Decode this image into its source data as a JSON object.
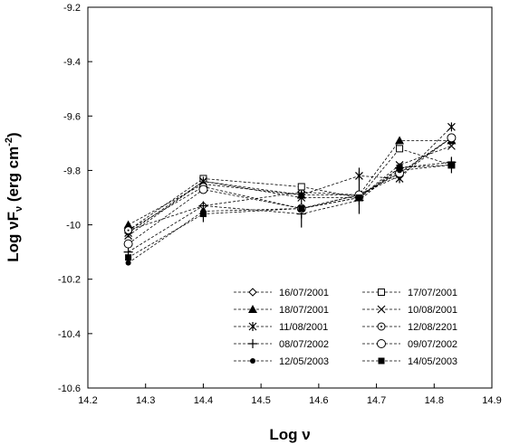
{
  "chart_data": {
    "type": "line",
    "xlabel": "Log ν",
    "ylabel_main": "Log νF",
    "ylabel_sub": "ν",
    "ylabel_unit": " (erg cm",
    "ylabel_sup": "-2",
    "ylabel_close": ")",
    "xlim": [
      14.2,
      14.9
    ],
    "ylim": [
      -10.6,
      -9.2
    ],
    "xticks": [
      "14.2",
      "14.3",
      "14.4",
      "14.5",
      "14.6",
      "14.7",
      "14.8",
      "14.9"
    ],
    "yticks": [
      "-9.2",
      "-9.4",
      "-9.6",
      "-9.8",
      "-10",
      "-10.2",
      "-10.4",
      "-10.6"
    ],
    "grid": false,
    "legend_position": "bottom-right",
    "x": [
      14.27,
      14.4,
      14.57,
      14.67,
      14.74,
      14.83
    ],
    "series": [
      {
        "name": "16/07/2001",
        "marker": "diamond-open",
        "values": [
          -10.02,
          -9.93,
          -9.88,
          -9.89,
          -9.82,
          -9.68
        ]
      },
      {
        "name": "17/07/2001",
        "marker": "square-open",
        "values": [
          -10.02,
          -9.83,
          -9.86,
          -9.9,
          -9.72,
          -9.78
        ]
      },
      {
        "name": "18/07/2001",
        "marker": "triangle-filled",
        "values": [
          -10.0,
          -9.85,
          -9.89,
          -9.89,
          -9.69,
          -9.69
        ]
      },
      {
        "name": "10/08/2001",
        "marker": "x",
        "values": [
          -10.04,
          -9.84,
          -9.9,
          -9.9,
          -9.78,
          -9.71
        ]
      },
      {
        "name": "11/08/2001",
        "marker": "asterisk",
        "values": [
          -10.03,
          -9.84,
          -9.89,
          -9.82,
          -9.83,
          -9.64
        ]
      },
      {
        "name": "12/08/2201",
        "marker": "circle-open-dot",
        "values": [
          -10.02,
          -9.86,
          -9.94,
          -9.89,
          -9.81,
          -9.68
        ]
      },
      {
        "name": "08/07/2002",
        "marker": "plus",
        "values": [
          -10.1,
          -9.93,
          -9.96,
          -9.91,
          -9.79,
          -9.77
        ]
      },
      {
        "name": "09/07/2002",
        "marker": "circle-open",
        "values": [
          -10.07,
          -9.87,
          -9.94,
          -9.89,
          -9.81,
          -9.68
        ]
      },
      {
        "name": "12/05/2003",
        "marker": "dot-filled",
        "values": [
          -10.14,
          -9.95,
          -9.94,
          -9.9,
          -9.8,
          -9.78
        ]
      },
      {
        "name": "14/05/2003",
        "marker": "square-filled",
        "values": [
          -10.12,
          -9.96,
          -9.94,
          -9.9,
          -9.79,
          -9.78
        ]
      }
    ],
    "error_bars": [
      {
        "x": 14.57,
        "low": -10.01,
        "high": -9.88
      },
      {
        "x": 14.67,
        "low": -9.96,
        "high": -9.79
      },
      {
        "x": 14.83,
        "low": -9.81,
        "high": -9.75
      },
      {
        "x": 14.4,
        "low": -9.99,
        "high": -9.95
      }
    ]
  }
}
